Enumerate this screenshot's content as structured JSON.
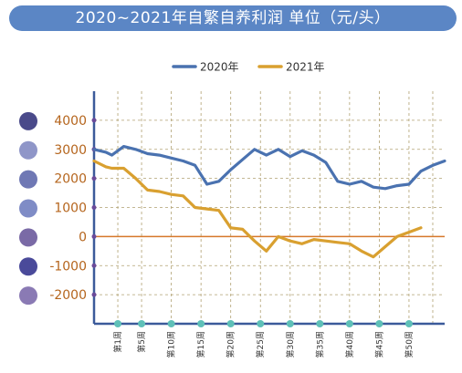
{
  "title": "2020~2021年自繁自养利润 单位（元/头）",
  "chart_data": {
    "type": "line",
    "ylim": [
      -3000,
      5000
    ],
    "yticks": [
      4000,
      3000,
      2000,
      1000,
      0,
      -1000,
      -2000
    ],
    "ytick_labels": [
      "4000",
      "3000",
      "2000",
      "1000",
      "0",
      "-1000",
      "-2000"
    ],
    "xlim": [
      -3,
      56
    ],
    "xticks": [
      1,
      5,
      10,
      15,
      20,
      25,
      30,
      35,
      40,
      45,
      50
    ],
    "xtick_labels": [
      "第1周",
      "第5周",
      "第10周",
      "第15周",
      "第20周",
      "第25周",
      "第30周",
      "第35周",
      "第40周",
      "第45周",
      "第50周"
    ],
    "grid": true,
    "legend": "top-center",
    "series": [
      {
        "name": "2020年",
        "color": "#4a72b0",
        "x": [
          -3,
          -1,
          0,
          2,
          4,
          6,
          8,
          10,
          12,
          14,
          16,
          18,
          20,
          22,
          24,
          26,
          28,
          30,
          32,
          34,
          36,
          38,
          40,
          42,
          44,
          46,
          48,
          50,
          52,
          54,
          56
        ],
        "y": [
          3000,
          2900,
          2800,
          3100,
          3000,
          2850,
          2800,
          2700,
          2600,
          2450,
          1800,
          1900,
          2300,
          2650,
          3000,
          2800,
          3000,
          2750,
          2950,
          2800,
          2550,
          1900,
          1800,
          1900,
          1700,
          1650,
          1750,
          1800,
          2250,
          2450,
          2600
        ]
      },
      {
        "name": "2021年",
        "color": "#d9a030",
        "x": [
          -3,
          -1,
          0,
          2,
          4,
          6,
          8,
          10,
          12,
          14,
          16,
          18,
          20,
          22,
          24,
          26,
          28,
          30,
          32,
          34,
          36,
          38,
          40,
          42,
          44,
          46,
          48,
          50,
          52
        ],
        "y": [
          2600,
          2400,
          2350,
          2350,
          2000,
          1600,
          1550,
          1450,
          1400,
          1000,
          950,
          900,
          300,
          250,
          -150,
          -500,
          0,
          -150,
          -250,
          -100,
          -150,
          -200,
          -250,
          -500,
          -700,
          -350,
          0,
          150,
          300
        ]
      }
    ]
  }
}
